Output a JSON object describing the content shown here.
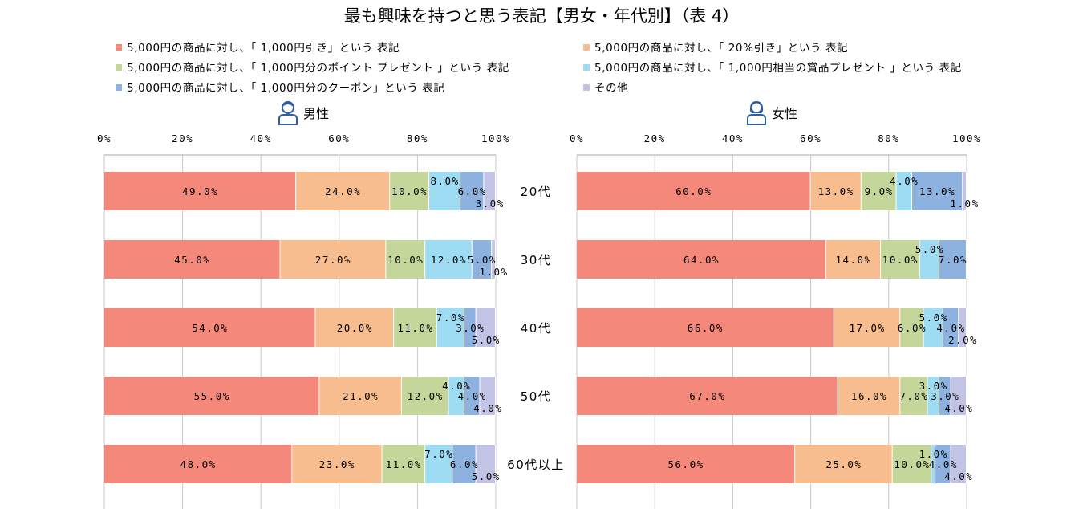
{
  "chart_data": {
    "type": "bar",
    "orientation": "horizontal",
    "stacked": "percent",
    "title": "最も興味を持つと思う表記【男女・年代別】（表 4）",
    "legend_position": "top",
    "categories": [
      "20代",
      "30代",
      "40代",
      "50代",
      "60代以上"
    ],
    "xlim": [
      0,
      100
    ],
    "xticks": [
      "0%",
      "20%",
      "40%",
      "60%",
      "80%",
      "100%"
    ],
    "legend": [
      {
        "name": "5,000円の商品に対し、「 1,000円引き」という 表記",
        "color": "#f4897b"
      },
      {
        "name": "5,000円の商品に対し、「 20%引き」という 表記",
        "color": "#f8bd8f"
      },
      {
        "name": "5,000円の商品に対し、「 1,000円分のポイント プレゼント 」という 表記",
        "color": "#c4d69a"
      },
      {
        "name": "5,000円の商品に対し、「 1,000円相当の賞品プレゼント 」という 表記",
        "color": "#9edcf4"
      },
      {
        "name": "5,000円の商品に対し、「 1,000円分のクーポン」という 表記",
        "color": "#8eb2e0"
      },
      {
        "name": "その他",
        "color": "#c3c3e6"
      }
    ],
    "panels": [
      {
        "label": "男性",
        "icon": "male-person-icon",
        "series": [
          {
            "name": "1,000円引き",
            "values": [
              49.0,
              45.0,
              54.0,
              55.0,
              48.0
            ]
          },
          {
            "name": "20%引き",
            "values": [
              24.0,
              27.0,
              20.0,
              21.0,
              23.0
            ]
          },
          {
            "name": "1,000円分のポイントプレゼント",
            "values": [
              10.0,
              10.0,
              11.0,
              12.0,
              11.0
            ]
          },
          {
            "name": "1,000円相当の賞品プレゼント",
            "values": [
              8.0,
              12.0,
              7.0,
              4.0,
              7.0
            ]
          },
          {
            "name": "1,000円分のクーポン",
            "values": [
              6.0,
              5.0,
              3.0,
              4.0,
              6.0
            ]
          },
          {
            "name": "その他",
            "values": [
              3.0,
              1.0,
              5.0,
              4.0,
              5.0
            ]
          }
        ]
      },
      {
        "label": "女性",
        "icon": "female-person-icon",
        "series": [
          {
            "name": "1,000円引き",
            "values": [
              60.0,
              64.0,
              66.0,
              67.0,
              56.0
            ]
          },
          {
            "name": "20%引き",
            "values": [
              13.0,
              14.0,
              17.0,
              16.0,
              25.0
            ]
          },
          {
            "name": "1,000円分のポイントプレゼント",
            "values": [
              9.0,
              10.0,
              6.0,
              7.0,
              10.0
            ]
          },
          {
            "name": "1,000円相当の賞品プレゼント",
            "values": [
              4.0,
              5.0,
              5.0,
              3.0,
              1.0
            ]
          },
          {
            "name": "1,000円分のクーポン",
            "values": [
              13.0,
              7.0,
              4.0,
              3.0,
              4.0
            ]
          },
          {
            "name": "その他",
            "values": [
              1.0,
              0.0,
              2.0,
              4.0,
              4.0
            ]
          }
        ]
      }
    ]
  }
}
